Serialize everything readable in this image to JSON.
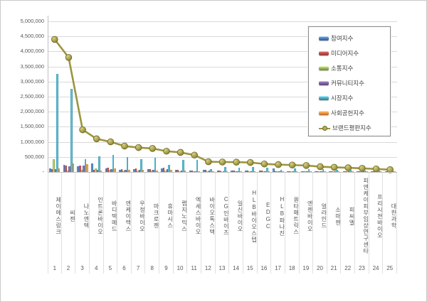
{
  "window": {
    "background": "#ffffff",
    "border_color": "#c9c9c9"
  },
  "chart_data": {
    "type": "bar",
    "subtype": "grouped-bars-with-line-overlay",
    "title": "",
    "grid": true,
    "legend_position": "top-right",
    "categories": [
      "제이에스링크",
      "씨젠",
      "나노엔텍",
      "인트론바이오",
      "바디텍메드",
      "엔케이맥스",
      "우정바이오",
      "마크로젠",
      "휴마시스",
      "랩지노믹스",
      "엑세스바이오",
      "바이오톡스텍",
      "CG인바이츠",
      "일신바이오",
      "HLB바이오스텝",
      "EDGC",
      "HLB파나진",
      "퀀타매트릭스",
      "엔젠바이오",
      "얼라인드",
      "소마젠",
      "피씨엘",
      "피엔케이피부임상연구센타",
      "프리시젼바이오",
      "대한과학"
    ],
    "rank_labels": [
      "1",
      "2",
      "3",
      "4",
      "5",
      "6",
      "7",
      "8",
      "9",
      "10",
      "11",
      "12",
      "13",
      "14",
      "15",
      "16",
      "17",
      "18",
      "19",
      "20",
      "21",
      "22",
      "23",
      "24",
      "25"
    ],
    "series": [
      {
        "name": "참여지수",
        "color": "#4F81BD",
        "values": [
          120000,
          240000,
          180000,
          280000,
          120000,
          80000,
          100000,
          90000,
          120000,
          60000,
          40000,
          60000,
          40000,
          50000,
          45000,
          40000,
          110000,
          30000,
          30000,
          20000,
          25000,
          20000,
          15000,
          12000,
          10000
        ]
      },
      {
        "name": "미디어지수",
        "color": "#C0504D",
        "values": [
          100000,
          220000,
          210000,
          60000,
          150000,
          90000,
          110000,
          100000,
          140000,
          70000,
          50000,
          70000,
          50000,
          55000,
          50000,
          45000,
          30000,
          35000,
          35000,
          25000,
          30000,
          25000,
          20000,
          15000,
          12000
        ]
      },
      {
        "name": "소통지수",
        "color": "#9BBB59",
        "values": [
          430000,
          50000,
          80000,
          120000,
          60000,
          40000,
          50000,
          40000,
          50000,
          30000,
          20000,
          25000,
          20000,
          20000,
          20000,
          15000,
          10000,
          10000,
          10000,
          8000,
          8000,
          8000,
          5000,
          5000,
          4000
        ]
      },
      {
        "name": "커뮤니티지수",
        "color": "#8064A2",
        "values": [
          90000,
          180000,
          220000,
          70000,
          100000,
          70000,
          80000,
          70000,
          90000,
          50000,
          35000,
          45000,
          30000,
          35000,
          30000,
          25000,
          20000,
          20000,
          20000,
          15000,
          15000,
          12000,
          10000,
          8000,
          6000
        ]
      },
      {
        "name": "시장지수",
        "color": "#4BACC6",
        "values": [
          3250000,
          2750000,
          420000,
          520000,
          570000,
          495000,
          425000,
          465000,
          230000,
          410000,
          400000,
          100000,
          170000,
          150000,
          160000,
          130000,
          60000,
          110000,
          100000,
          90000,
          60000,
          60000,
          50000,
          45000,
          35000
        ]
      },
      {
        "name": "사회공헌지수",
        "color": "#F79646",
        "values": [
          110000,
          280000,
          260000,
          40000,
          120000,
          60000,
          60000,
          50000,
          60000,
          40000,
          25000,
          35000,
          20000,
          20000,
          25000,
          20000,
          15000,
          15000,
          15000,
          10000,
          10000,
          10000,
          8000,
          8000,
          6000
        ]
      }
    ],
    "line_series": {
      "name": "브랜드평판지수",
      "color": "#9C9440",
      "marker_fill": "#B5AD5E",
      "marker_edge": "#6F6926",
      "values": [
        4400000,
        3800000,
        1400000,
        1100000,
        1000000,
        860000,
        810000,
        780000,
        690000,
        650000,
        560000,
        340000,
        330000,
        325000,
        315000,
        265000,
        245000,
        230000,
        215000,
        175000,
        155000,
        140000,
        120000,
        100000,
        75000
      ]
    },
    "y_axis": {
      "min": 0,
      "max": 5000000,
      "step": 500000,
      "tick_labels": [
        "-",
        "500,000",
        "1,000,000",
        "1,500,000",
        "2,000,000",
        "2,500,000",
        "3,000,000",
        "3,500,000",
        "4,000,000",
        "4,500,000",
        "5,000,000"
      ]
    }
  }
}
